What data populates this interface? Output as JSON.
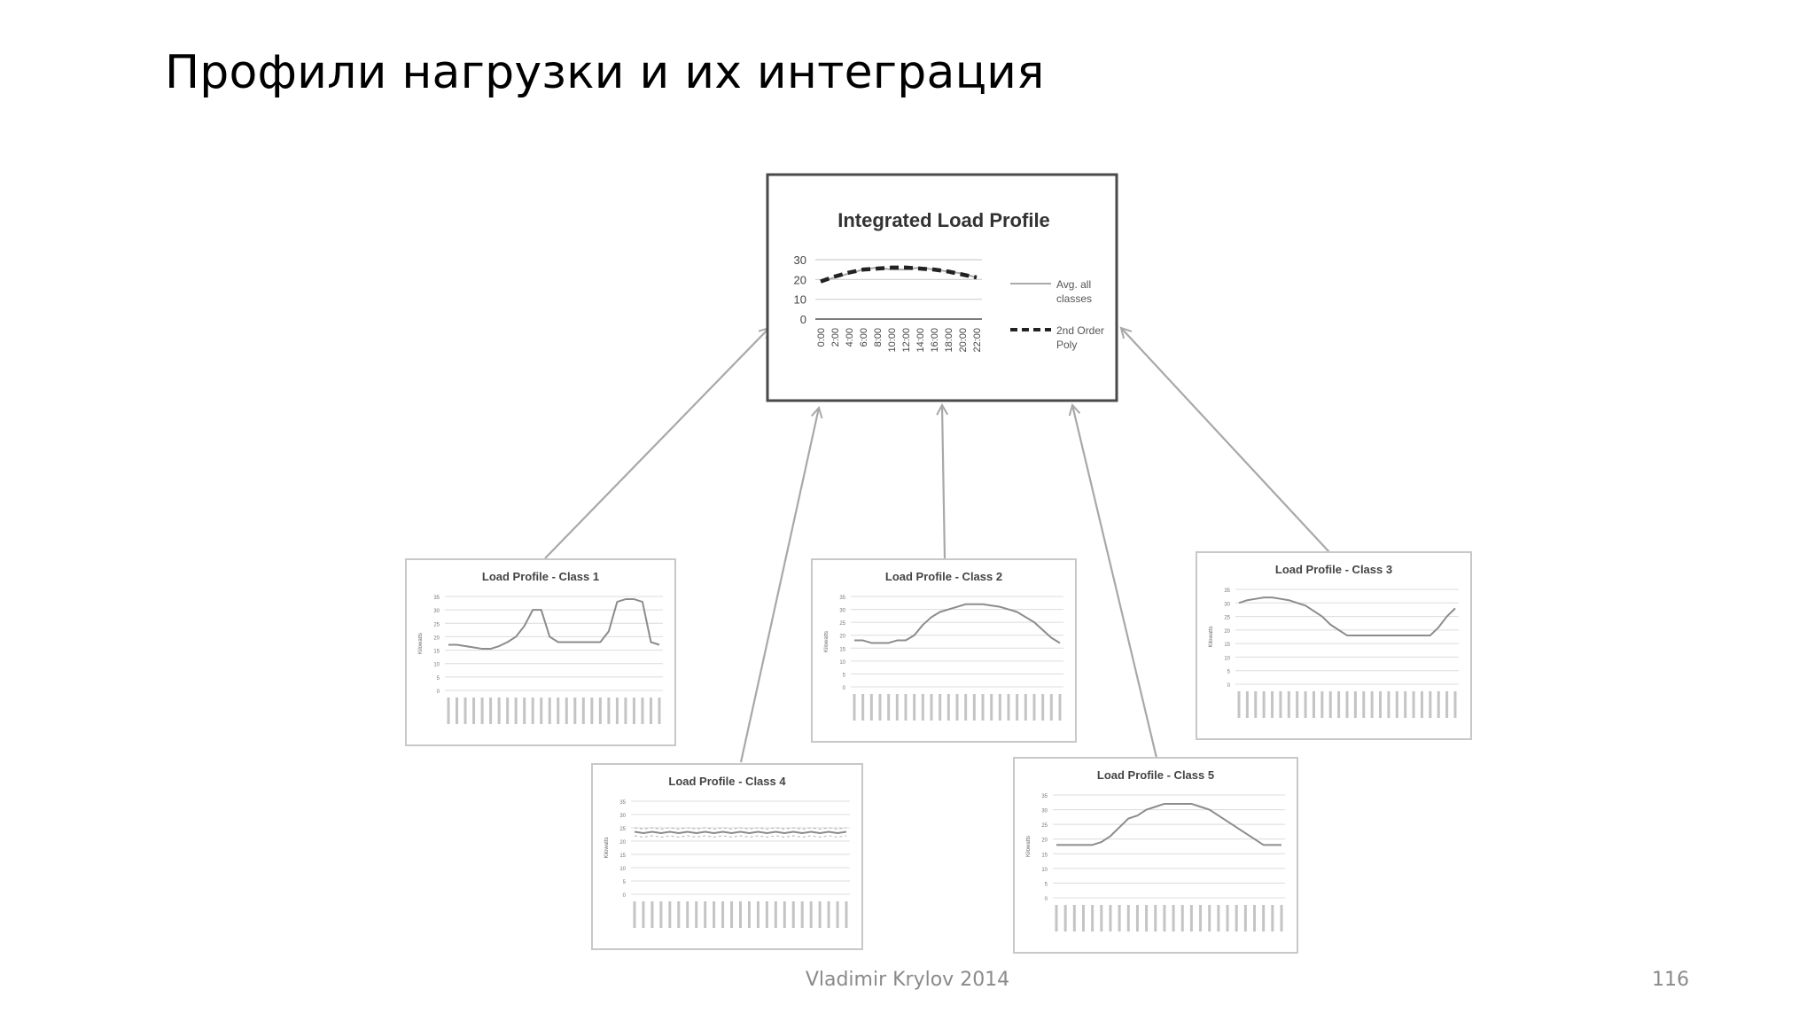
{
  "slide": {
    "title": "Профили нагрузки и их интеграция",
    "author": "Vladimir Krylov 2014",
    "page_number": "116"
  },
  "colors": {
    "box_border": "#4a4a4a",
    "small_border": "#c8c8c8",
    "arrow": "#a8a8a8",
    "curve": "#8c8c8c",
    "grid": "#d9d9d9"
  },
  "integrated": {
    "title": "Integrated Load Profile",
    "y_ticks": [
      "30",
      "20",
      "10",
      "0"
    ],
    "ylim": [
      0,
      30
    ],
    "x_ticks": [
      "0:00",
      "2:00",
      "4:00",
      "6:00",
      "8:00",
      "10:00",
      "12:00",
      "14:00",
      "16:00",
      "18:00",
      "20:00",
      "22:00"
    ],
    "legend": [
      {
        "label": "Avg. all classes",
        "style": "solid"
      },
      {
        "label": "2nd Order Poly",
        "style": "dashed"
      }
    ],
    "series_avg": [
      19,
      21,
      23,
      25,
      26,
      25,
      25,
      26,
      25,
      24,
      23,
      21
    ],
    "series_poly": [
      19,
      21.5,
      23.5,
      25,
      25.5,
      26,
      26,
      25.5,
      25,
      24,
      22.5,
      21
    ]
  },
  "classes": [
    {
      "id": "class1",
      "title": "Load Profile - Class 1",
      "ylabel": "Kilowatts",
      "values": [
        17,
        17,
        16.5,
        16,
        15.5,
        15.5,
        16.5,
        18,
        20,
        24,
        30,
        30,
        20,
        18,
        18,
        18,
        18,
        18,
        18,
        22,
        33,
        34,
        34,
        33,
        18,
        17
      ]
    },
    {
      "id": "class2",
      "title": "Load Profile - Class 2",
      "ylabel": "Kilowatts",
      "values": [
        18,
        18,
        17,
        17,
        17,
        18,
        18,
        20,
        24,
        27,
        29,
        30,
        31,
        32,
        32,
        32,
        31.5,
        31,
        30,
        29,
        27,
        25,
        22,
        19,
        17
      ]
    },
    {
      "id": "class3",
      "title": "Load Profile - Class 3",
      "ylabel": "Kilowatts",
      "values": [
        30,
        31,
        31.5,
        32,
        32,
        31.5,
        31,
        30,
        29,
        27,
        25,
        22,
        20,
        18,
        18,
        18,
        18,
        18,
        18,
        18,
        18,
        18,
        18,
        18,
        21,
        25,
        28
      ]
    },
    {
      "id": "class4",
      "title": "Load Profile - Class 4",
      "ylabel": "Kilowatts",
      "values": [
        23.5,
        23,
        23.5,
        23,
        23.5,
        23,
        23.5,
        23,
        23.5,
        23,
        23.5,
        23,
        23.5,
        23,
        23.5,
        23,
        23.5,
        23,
        23.5,
        23,
        23.5,
        23,
        23.5,
        23,
        23.5
      ]
    },
    {
      "id": "class5",
      "title": "Load Profile - Class 5",
      "ylabel": "Kilowatts",
      "values": [
        18,
        18,
        18,
        18,
        18,
        19,
        21,
        24,
        27,
        28,
        30,
        31,
        32,
        32,
        32,
        32,
        31,
        30,
        28,
        26,
        24,
        22,
        20,
        18,
        18,
        18
      ]
    }
  ],
  "small_y_ticks": [
    "35",
    "30",
    "25",
    "20",
    "15",
    "10",
    "5",
    "0"
  ],
  "small_ylim": [
    0,
    35
  ]
}
